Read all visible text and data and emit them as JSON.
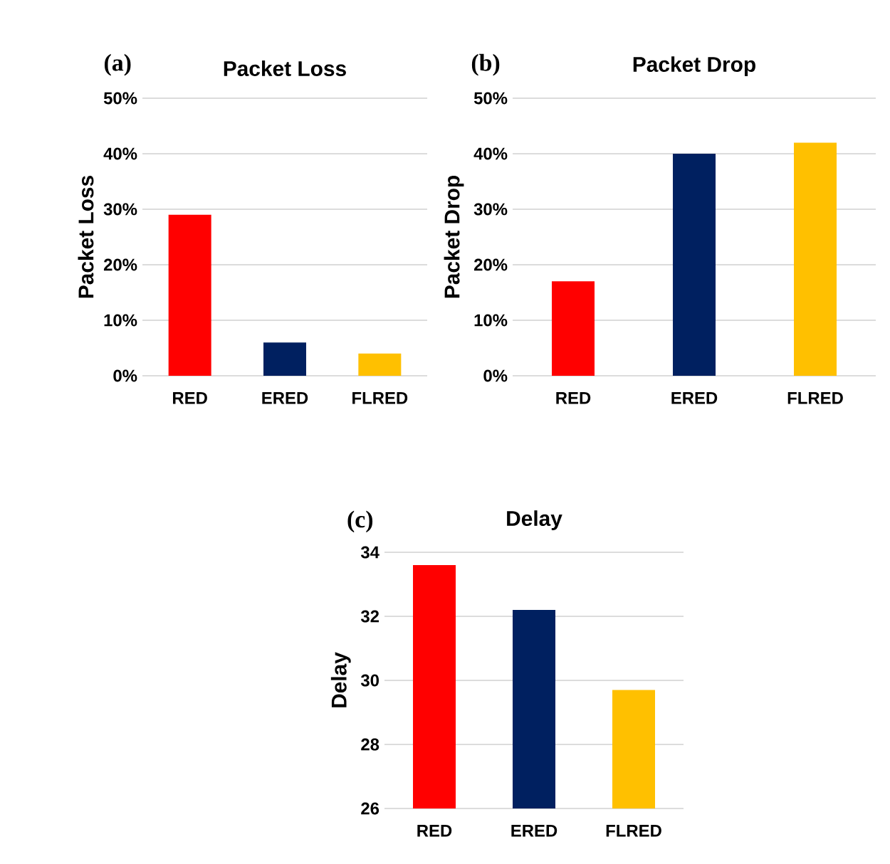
{
  "chart_data": [
    {
      "type": "bar",
      "title": "Packet Loss",
      "ylabel": "Packet Loss",
      "annotations": [
        "(a)"
      ],
      "categories": [
        "RED",
        "ERED",
        "FLRED"
      ],
      "values": [
        29,
        6,
        4
      ],
      "colors": [
        "#ff0000",
        "#002060",
        "#ffc000"
      ],
      "ylim": [
        0,
        50
      ],
      "yticks": [
        {
          "value": 0,
          "label": "0%"
        },
        {
          "value": 10,
          "label": "10%"
        },
        {
          "value": 20,
          "label": "20%"
        },
        {
          "value": 30,
          "label": "30%"
        },
        {
          "value": 40,
          "label": "40%"
        },
        {
          "value": 50,
          "label": "50%"
        }
      ],
      "grid": "y"
    },
    {
      "type": "bar",
      "title": "Packet Drop",
      "ylabel": "Packet Drop",
      "annotations": [
        "(b)"
      ],
      "categories": [
        "RED",
        "ERED",
        "FLRED"
      ],
      "values": [
        17,
        40,
        42
      ],
      "colors": [
        "#ff0000",
        "#002060",
        "#ffc000"
      ],
      "ylim": [
        0,
        50
      ],
      "yticks": [
        {
          "value": 0,
          "label": "0%"
        },
        {
          "value": 10,
          "label": "10%"
        },
        {
          "value": 20,
          "label": "20%"
        },
        {
          "value": 30,
          "label": "30%"
        },
        {
          "value": 40,
          "label": "40%"
        },
        {
          "value": 50,
          "label": "50%"
        }
      ],
      "grid": "y"
    },
    {
      "type": "bar",
      "title": "Delay",
      "ylabel": "Delay",
      "annotations": [
        "(c)"
      ],
      "categories": [
        "RED",
        "ERED",
        "FLRED"
      ],
      "values": [
        33.6,
        32.2,
        29.7
      ],
      "colors": [
        "#ff0000",
        "#002060",
        "#ffc000"
      ],
      "ylim": [
        26,
        34
      ],
      "yticks": [
        26,
        28,
        30,
        32,
        34
      ],
      "grid": "y"
    }
  ]
}
